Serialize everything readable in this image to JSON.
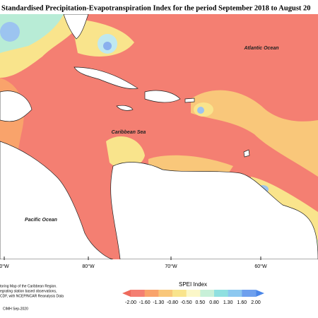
{
  "title": "Standardised Precipitation-Evapotranspiration Index for the period September 2018 to August 20",
  "labels": {
    "atlantic": "Atlantic Ocean",
    "caribbean": "Caribbean Sea",
    "pacific": "Pacific Ocean"
  },
  "longitudes": [
    "0°W",
    "80°W",
    "70°W",
    "60°W"
  ],
  "legend": {
    "title": "SPEI Index",
    "ticks": [
      "-2.00",
      "-1.60",
      "-1.30",
      "-0.80",
      "-0.50",
      "0.50",
      "0.80",
      "1.30",
      "1.60",
      "2.00"
    ]
  },
  "credits": [
    "toring Map of the Caribbean Region.",
    "egrating station based observations,",
    "CDF, with NCEP/NCAR Reanalysis Data",
    "CIMH Sep-2020"
  ]
}
